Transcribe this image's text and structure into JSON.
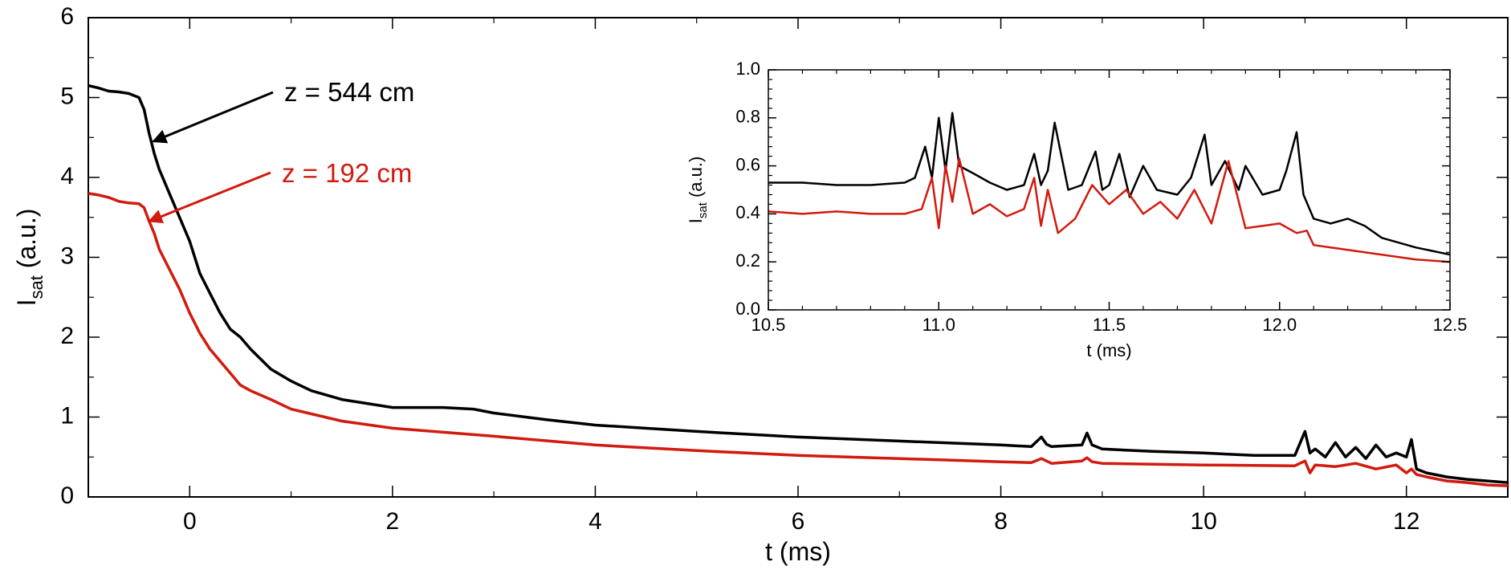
{
  "colors": {
    "series_black": "#000000",
    "series_red": "#d21a0e",
    "axis": "#000000",
    "background": "#ffffff"
  },
  "chart_data": [
    {
      "type": "line",
      "title": "",
      "xlabel": "t (ms)",
      "ylabel_main": "I",
      "ylabel_sub": "sat",
      "ylabel_unit": " (a.u.)",
      "xlim": [
        -1.0,
        13.0
      ],
      "ylim": [
        0,
        6
      ],
      "xticks": [
        0,
        2,
        4,
        6,
        8,
        10,
        12
      ],
      "xtick_labels": [
        "0",
        "2",
        "4",
        "6",
        "8",
        "10",
        "12"
      ],
      "yticks": [
        0,
        1,
        2,
        3,
        4,
        5,
        6
      ],
      "ytick_labels": [
        "0",
        "1",
        "2",
        "3",
        "4",
        "5",
        "6"
      ],
      "grid": false,
      "series": [
        {
          "name": "z = 544 cm",
          "color": "#000000",
          "x": [
            -1.0,
            -0.9,
            -0.8,
            -0.7,
            -0.6,
            -0.5,
            -0.45,
            -0.4,
            -0.35,
            -0.3,
            -0.2,
            -0.1,
            0.0,
            0.1,
            0.2,
            0.3,
            0.4,
            0.5,
            0.6,
            0.8,
            1.0,
            1.2,
            1.5,
            2.0,
            2.5,
            2.8,
            3.0,
            3.5,
            4.0,
            5.0,
            6.0,
            7.0,
            8.0,
            8.3,
            8.4,
            8.45,
            8.5,
            8.8,
            8.85,
            8.9,
            9.0,
            9.5,
            10.0,
            10.5,
            10.9,
            11.0,
            11.05,
            11.1,
            11.2,
            11.3,
            11.4,
            11.5,
            11.6,
            11.7,
            11.8,
            11.9,
            12.0,
            12.05,
            12.1,
            12.2,
            12.4,
            12.6,
            12.8,
            13.0
          ],
          "y": [
            5.15,
            5.12,
            5.08,
            5.07,
            5.05,
            5.0,
            4.85,
            4.55,
            4.3,
            4.1,
            3.8,
            3.5,
            3.2,
            2.8,
            2.55,
            2.3,
            2.1,
            2.0,
            1.85,
            1.6,
            1.45,
            1.33,
            1.22,
            1.12,
            1.12,
            1.1,
            1.05,
            0.97,
            0.9,
            0.82,
            0.75,
            0.7,
            0.65,
            0.63,
            0.75,
            0.66,
            0.63,
            0.65,
            0.8,
            0.65,
            0.6,
            0.57,
            0.55,
            0.52,
            0.52,
            0.82,
            0.55,
            0.6,
            0.5,
            0.68,
            0.5,
            0.62,
            0.48,
            0.65,
            0.5,
            0.55,
            0.5,
            0.72,
            0.35,
            0.3,
            0.25,
            0.22,
            0.2,
            0.18
          ]
        },
        {
          "name": "z = 192 cm",
          "color": "#d21a0e",
          "x": [
            -1.0,
            -0.9,
            -0.8,
            -0.7,
            -0.6,
            -0.5,
            -0.45,
            -0.4,
            -0.35,
            -0.3,
            -0.2,
            -0.1,
            0.0,
            0.1,
            0.2,
            0.3,
            0.4,
            0.5,
            0.6,
            0.8,
            1.0,
            1.5,
            2.0,
            3.0,
            4.0,
            5.0,
            6.0,
            7.0,
            8.0,
            8.3,
            8.4,
            8.5,
            8.8,
            8.85,
            8.9,
            9.0,
            10.0,
            10.9,
            11.0,
            11.05,
            11.1,
            11.3,
            11.5,
            11.7,
            11.9,
            12.0,
            12.05,
            12.1,
            12.2,
            12.4,
            12.6,
            12.8,
            13.0
          ],
          "y": [
            3.8,
            3.78,
            3.75,
            3.7,
            3.68,
            3.67,
            3.62,
            3.45,
            3.3,
            3.1,
            2.85,
            2.6,
            2.3,
            2.05,
            1.85,
            1.7,
            1.55,
            1.4,
            1.33,
            1.22,
            1.1,
            0.95,
            0.86,
            0.76,
            0.65,
            0.58,
            0.52,
            0.48,
            0.44,
            0.43,
            0.48,
            0.42,
            0.45,
            0.49,
            0.44,
            0.42,
            0.4,
            0.39,
            0.45,
            0.3,
            0.4,
            0.38,
            0.42,
            0.35,
            0.4,
            0.3,
            0.35,
            0.28,
            0.25,
            0.2,
            0.18,
            0.15,
            0.14
          ]
        }
      ],
      "annotations": [
        {
          "text": "z = 544 cm",
          "color": "#000000"
        },
        {
          "text": "z = 192 cm",
          "color": "#d21a0e"
        }
      ]
    },
    {
      "type": "line",
      "title": "",
      "xlabel": "t (ms)",
      "ylabel_main": "I",
      "ylabel_sub": "sat",
      "ylabel_unit": " (a.u.)",
      "xlim": [
        10.5,
        12.5
      ],
      "ylim": [
        0.0,
        1.0
      ],
      "xticks": [
        10.5,
        11.0,
        11.5,
        12.0,
        12.5
      ],
      "xtick_labels": [
        "10.5",
        "11.0",
        "11.5",
        "12.0",
        "12.5"
      ],
      "yticks": [
        0.0,
        0.2,
        0.4,
        0.6,
        0.8,
        1.0
      ],
      "ytick_labels": [
        "0.0",
        "0.2",
        "0.4",
        "0.6",
        "0.8",
        "1.0"
      ],
      "grid": false,
      "series": [
        {
          "color": "#000000",
          "x": [
            10.5,
            10.6,
            10.7,
            10.8,
            10.9,
            10.93,
            10.96,
            10.98,
            11.0,
            11.02,
            11.04,
            11.06,
            11.1,
            11.15,
            11.2,
            11.25,
            11.28,
            11.3,
            11.32,
            11.34,
            11.38,
            11.42,
            11.46,
            11.48,
            11.5,
            11.53,
            11.56,
            11.6,
            11.64,
            11.7,
            11.74,
            11.78,
            11.8,
            11.84,
            11.88,
            11.9,
            11.95,
            12.0,
            12.02,
            12.05,
            12.07,
            12.1,
            12.15,
            12.2,
            12.25,
            12.3,
            12.4,
            12.5
          ],
          "y": [
            0.53,
            0.53,
            0.52,
            0.52,
            0.53,
            0.55,
            0.68,
            0.55,
            0.8,
            0.58,
            0.82,
            0.6,
            0.57,
            0.53,
            0.5,
            0.52,
            0.65,
            0.52,
            0.58,
            0.78,
            0.5,
            0.52,
            0.66,
            0.5,
            0.52,
            0.65,
            0.47,
            0.6,
            0.5,
            0.48,
            0.55,
            0.73,
            0.52,
            0.62,
            0.5,
            0.6,
            0.48,
            0.5,
            0.58,
            0.74,
            0.48,
            0.38,
            0.36,
            0.38,
            0.35,
            0.3,
            0.26,
            0.23
          ]
        },
        {
          "color": "#d21a0e",
          "x": [
            10.5,
            10.6,
            10.7,
            10.8,
            10.9,
            10.95,
            10.98,
            11.0,
            11.02,
            11.04,
            11.06,
            11.1,
            11.15,
            11.2,
            11.25,
            11.28,
            11.3,
            11.32,
            11.35,
            11.4,
            11.45,
            11.5,
            11.55,
            11.6,
            11.65,
            11.7,
            11.75,
            11.8,
            11.85,
            11.9,
            11.95,
            12.0,
            12.05,
            12.08,
            12.1,
            12.15,
            12.2,
            12.3,
            12.4,
            12.5
          ],
          "y": [
            0.41,
            0.4,
            0.41,
            0.4,
            0.4,
            0.42,
            0.55,
            0.34,
            0.6,
            0.45,
            0.63,
            0.4,
            0.44,
            0.39,
            0.42,
            0.55,
            0.35,
            0.5,
            0.32,
            0.38,
            0.52,
            0.44,
            0.5,
            0.4,
            0.45,
            0.38,
            0.5,
            0.36,
            0.62,
            0.34,
            0.35,
            0.36,
            0.32,
            0.33,
            0.27,
            0.26,
            0.25,
            0.23,
            0.21,
            0.2
          ]
        }
      ]
    }
  ]
}
